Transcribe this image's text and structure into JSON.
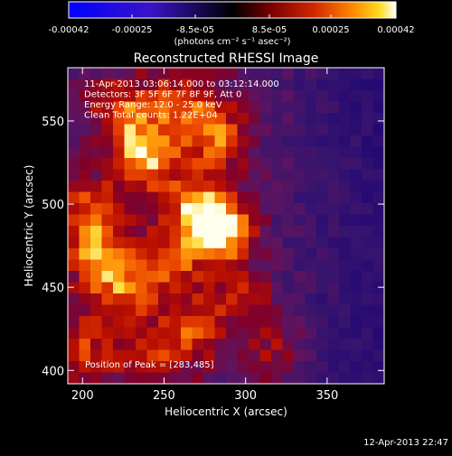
{
  "colorbar": {
    "tick_labels": [
      "-0.00042",
      "-0.00025",
      "-8.5e-05",
      "8.5e-05",
      "0.00025",
      "0.00042"
    ],
    "units_label": "(photons cm⁻² s⁻¹ asec⁻²)",
    "range": [
      -0.00042,
      0.00042
    ]
  },
  "chart_data": {
    "type": "heatmap",
    "title": "Reconstructed RHESSI Image",
    "xlabel": "Heliocentric X (arcsec)",
    "ylabel": "Heliocentric Y (arcsec)",
    "xlim": [
      191,
      385
    ],
    "ylim": [
      392,
      582
    ],
    "x_ticks": [
      200,
      250,
      300,
      350
    ],
    "y_ticks": [
      400,
      450,
      500,
      550
    ],
    "annotations": [
      "11-Apr-2013 03:06:14.000 to 03:12:14.000",
      "Detectors: 3F 5F 6F 7F 8F 9F, Att 0",
      "Energy Range: 12.0 - 25.0 keV",
      "Clean     Total counts: 1.22E+04"
    ],
    "peak_label": "Position of Peak = [283,485]",
    "peak": [
      283,
      485
    ],
    "blobs": [
      {
        "x": 283,
        "y": 485,
        "a": 1.0
      },
      {
        "x": 268,
        "y": 500,
        "a": 0.55
      },
      {
        "x": 238,
        "y": 528,
        "a": 0.75
      },
      {
        "x": 225,
        "y": 555,
        "a": 0.55
      },
      {
        "x": 260,
        "y": 560,
        "a": 0.55
      },
      {
        "x": 282,
        "y": 540,
        "a": 0.6
      },
      {
        "x": 205,
        "y": 495,
        "a": 0.55
      },
      {
        "x": 210,
        "y": 468,
        "a": 0.6
      },
      {
        "x": 225,
        "y": 448,
        "a": 0.5
      },
      {
        "x": 252,
        "y": 465,
        "a": 0.55
      },
      {
        "x": 268,
        "y": 425,
        "a": 0.5
      },
      {
        "x": 240,
        "y": 408,
        "a": 0.45
      },
      {
        "x": 200,
        "y": 415,
        "a": 0.45
      },
      {
        "x": 300,
        "y": 445,
        "a": 0.35
      },
      {
        "x": 318,
        "y": 412,
        "a": 0.35
      }
    ]
  },
  "footer": {
    "timestamp": "12-Apr-2013 22:47"
  }
}
